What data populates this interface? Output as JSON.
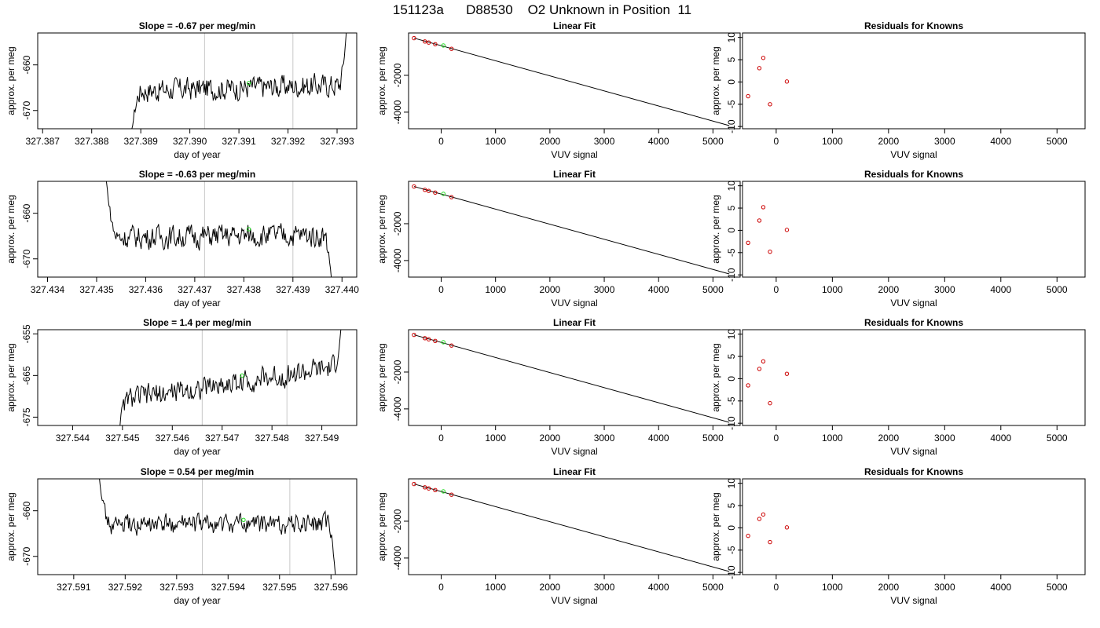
{
  "main_title": "151123a      D88530    O2 Unknown in Position  11",
  "chart_data": [
    {
      "panel": "r1-ts",
      "type": "line",
      "title": "Slope =  -0.67  per meg/min",
      "xlabel": "day of year",
      "ylabel": "approx. per meg",
      "xlim": [
        327.3869,
        327.3934
      ],
      "ylim": [
        -674,
        -653
      ],
      "xticks": [
        "327.387",
        "327.388",
        "327.389",
        "327.390",
        "327.391",
        "327.392",
        "327.393"
      ],
      "yticks": [
        "-660",
        "-670"
      ],
      "vlines": [
        327.3903,
        327.3921
      ],
      "trace_start": 327.3888,
      "trace_end": 327.3932,
      "trace_base": -665,
      "trace_trend": 1.3,
      "trace_head": -676,
      "trace_tail": -651,
      "trace_noise": 2.3,
      "green_point": {
        "x": 327.3912,
        "y": -664
      }
    },
    {
      "panel": "r1-fit",
      "type": "line",
      "title": "Linear Fit",
      "xlabel": "VUV signal",
      "ylabel": "approx. per meg",
      "xlim": [
        -600,
        5500
      ],
      "ylim": [
        -4900,
        300
      ],
      "xticks": [
        "0",
        "1000",
        "2000",
        "3000",
        "4000",
        "5000"
      ],
      "yticks": [
        "-2000",
        "-4000"
      ],
      "line": {
        "x": [
          -500,
          5300
        ],
        "y": [
          20,
          -4730
        ]
      },
      "known_points": [
        {
          "x": -500,
          "y": 20
        },
        {
          "x": -300,
          "y": -160
        },
        {
          "x": -230,
          "y": -220
        },
        {
          "x": -110,
          "y": -310
        },
        {
          "x": 190,
          "y": -560
        }
      ],
      "unknown_point": {
        "x": 40,
        "y": -380
      }
    },
    {
      "panel": "r1-res",
      "type": "scatter",
      "title": "Residuals for Knowns",
      "xlabel": "VUV signal",
      "ylabel": "approx. per meg",
      "xlim": [
        -600,
        5500
      ],
      "ylim": [
        -10.5,
        11
      ],
      "xticks": [
        "0",
        "1000",
        "2000",
        "3000",
        "4000",
        "5000"
      ],
      "yticks": [
        "10",
        "5",
        "0",
        "-5",
        "-10"
      ],
      "points": [
        {
          "x": -500,
          "y": -3.2
        },
        {
          "x": -300,
          "y": 3.1
        },
        {
          "x": -230,
          "y": 5.4
        },
        {
          "x": -110,
          "y": -5.0
        },
        {
          "x": 190,
          "y": 0.1
        }
      ]
    },
    {
      "panel": "r2-ts",
      "type": "line",
      "title": "Slope =  -0.63  per meg/min",
      "xlabel": "day of year",
      "ylabel": "approx. per meg",
      "xlim": [
        327.4338,
        327.4403
      ],
      "ylim": [
        -674,
        -653
      ],
      "xticks": [
        "327.434",
        "327.435",
        "327.436",
        "327.437",
        "327.438",
        "327.439",
        "327.440"
      ],
      "yticks": [
        "-660",
        "-670"
      ],
      "vlines": [
        327.4372,
        327.439
      ],
      "trace_start": 327.4352,
      "trace_end": 327.4398,
      "trace_base": -665,
      "trace_trend": 0.5,
      "trace_head": -653,
      "trace_tail": -676,
      "trace_noise": 2.3,
      "green_point": {
        "x": 327.4381,
        "y": -663.5
      }
    },
    {
      "panel": "r2-fit",
      "type": "line",
      "title": "Linear Fit",
      "xlabel": "VUV signal",
      "ylabel": "approx. per meg",
      "xlim": [
        -600,
        5500
      ],
      "ylim": [
        -4900,
        300
      ],
      "xticks": [
        "0",
        "1000",
        "2000",
        "3000",
        "4000",
        "5000"
      ],
      "yticks": [
        "-2000",
        "-4000"
      ],
      "line": {
        "x": [
          -500,
          5300
        ],
        "y": [
          20,
          -4730
        ]
      },
      "known_points": [
        {
          "x": -500,
          "y": 20
        },
        {
          "x": -300,
          "y": -160
        },
        {
          "x": -230,
          "y": -220
        },
        {
          "x": -110,
          "y": -310
        },
        {
          "x": 190,
          "y": -560
        }
      ],
      "unknown_point": {
        "x": 40,
        "y": -380
      }
    },
    {
      "panel": "r2-res",
      "type": "scatter",
      "title": "Residuals for Knowns",
      "xlabel": "VUV signal",
      "ylabel": "approx. per meg",
      "xlim": [
        -600,
        5500
      ],
      "ylim": [
        -10.5,
        11
      ],
      "xticks": [
        "0",
        "1000",
        "2000",
        "3000",
        "4000",
        "5000"
      ],
      "yticks": [
        "10",
        "5",
        "0",
        "-5",
        "-10"
      ],
      "points": [
        {
          "x": -500,
          "y": -2.8
        },
        {
          "x": -300,
          "y": 2.2
        },
        {
          "x": -230,
          "y": 5.2
        },
        {
          "x": -110,
          "y": -4.8
        },
        {
          "x": 190,
          "y": 0.1
        }
      ]
    },
    {
      "panel": "r3-ts",
      "type": "line",
      "title": "Slope =  1.4  per meg/min",
      "xlabel": "day of year",
      "ylabel": "approx. per meg",
      "xlim": [
        327.5433,
        327.5497
      ],
      "ylim": [
        -677,
        -654
      ],
      "xticks": [
        "327.544",
        "327.545",
        "327.546",
        "327.547",
        "327.548",
        "327.549"
      ],
      "yticks": [
        "-655",
        "-665",
        "-675"
      ],
      "vlines": [
        327.5466,
        327.5483
      ],
      "trace_start": 327.5449,
      "trace_end": 327.5494,
      "trace_base": -667,
      "trace_trend": 8,
      "trace_head": -680,
      "trace_tail": -652,
      "trace_noise": 2.5,
      "green_point": {
        "x": 327.5474,
        "y": -665
      }
    },
    {
      "panel": "r3-fit",
      "type": "line",
      "title": "Linear Fit",
      "xlabel": "VUV signal",
      "ylabel": "approx. per meg",
      "xlim": [
        -600,
        5500
      ],
      "ylim": [
        -4900,
        300
      ],
      "xticks": [
        "0",
        "1000",
        "2000",
        "3000",
        "4000",
        "5000"
      ],
      "yticks": [
        "-2000",
        "-4000"
      ],
      "line": {
        "x": [
          -500,
          5300
        ],
        "y": [
          20,
          -4730
        ]
      },
      "known_points": [
        {
          "x": -500,
          "y": 20
        },
        {
          "x": -300,
          "y": -160
        },
        {
          "x": -230,
          "y": -220
        },
        {
          "x": -110,
          "y": -310
        },
        {
          "x": 190,
          "y": -560
        }
      ],
      "unknown_point": {
        "x": 40,
        "y": -380
      }
    },
    {
      "panel": "r3-res",
      "type": "scatter",
      "title": "Residuals for Knowns",
      "xlabel": "VUV signal",
      "ylabel": "approx. per meg",
      "xlim": [
        -600,
        5500
      ],
      "ylim": [
        -10.5,
        11
      ],
      "xticks": [
        "0",
        "1000",
        "2000",
        "3000",
        "4000",
        "5000"
      ],
      "yticks": [
        "10",
        "5",
        "0",
        "-5",
        "-10"
      ],
      "points": [
        {
          "x": -500,
          "y": -1.5
        },
        {
          "x": -300,
          "y": 2.2
        },
        {
          "x": -230,
          "y": 3.9
        },
        {
          "x": -110,
          "y": -5.5
        },
        {
          "x": 190,
          "y": 1.1
        }
      ]
    },
    {
      "panel": "r4-ts",
      "type": "line",
      "title": "Slope =  0.54  per meg/min",
      "xlabel": "day of year",
      "ylabel": "approx. per meg",
      "xlim": [
        327.5903,
        327.5965
      ],
      "ylim": [
        -674,
        -653
      ],
      "xticks": [
        "327.591",
        "327.592",
        "327.593",
        "327.594",
        "327.595",
        "327.596"
      ],
      "yticks": [
        "-660",
        "-670"
      ],
      "vlines": [
        327.5935,
        327.5952
      ],
      "trace_start": 327.5915,
      "trace_end": 327.5961,
      "trace_base": -663,
      "trace_trend": 0.5,
      "trace_head": -653,
      "trace_tail": -676,
      "trace_noise": 2.0,
      "green_point": {
        "x": 327.5943,
        "y": -662
      }
    },
    {
      "panel": "r4-fit",
      "type": "line",
      "title": "Linear Fit",
      "xlabel": "VUV signal",
      "ylabel": "approx. per meg",
      "xlim": [
        -600,
        5500
      ],
      "ylim": [
        -4900,
        300
      ],
      "xticks": [
        "0",
        "1000",
        "2000",
        "3000",
        "4000",
        "5000"
      ],
      "yticks": [
        "-2000",
        "-4000"
      ],
      "line": {
        "x": [
          -500,
          5300
        ],
        "y": [
          20,
          -4730
        ]
      },
      "known_points": [
        {
          "x": -500,
          "y": 20
        },
        {
          "x": -300,
          "y": -160
        },
        {
          "x": -230,
          "y": -220
        },
        {
          "x": -110,
          "y": -310
        },
        {
          "x": 190,
          "y": -560
        }
      ],
      "unknown_point": {
        "x": 40,
        "y": -380
      }
    },
    {
      "panel": "r4-res",
      "type": "scatter",
      "title": "Residuals for Knowns",
      "xlabel": "VUV signal",
      "ylabel": "approx. per meg",
      "xlim": [
        -600,
        5500
      ],
      "ylim": [
        -10.5,
        11
      ],
      "xticks": [
        "0",
        "1000",
        "2000",
        "3000",
        "4000",
        "5000"
      ],
      "yticks": [
        "10",
        "5",
        "0",
        "-5",
        "-10"
      ],
      "points": [
        {
          "x": -500,
          "y": -1.8
        },
        {
          "x": -300,
          "y": 2.0
        },
        {
          "x": -230,
          "y": 3.0
        },
        {
          "x": -110,
          "y": -3.2
        },
        {
          "x": 190,
          "y": 0.1
        }
      ]
    }
  ]
}
